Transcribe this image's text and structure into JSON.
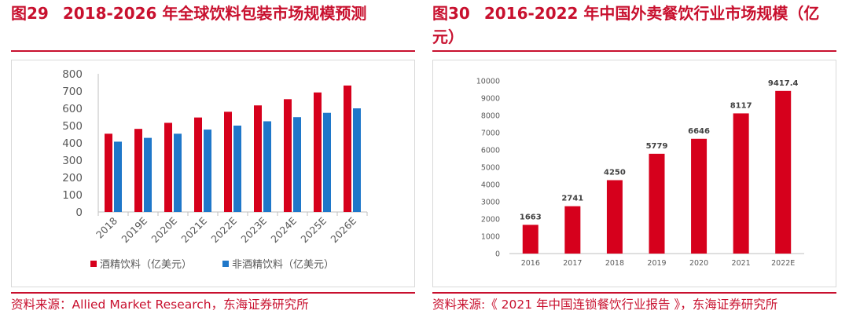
{
  "left": {
    "fig_no": "图29",
    "title": "2018-2026 年全球饮料包装市场规模预测",
    "source": "资料来源：Allied Market Research，东海证券研究所"
  },
  "right": {
    "fig_no": "图30",
    "title": "2016-2022 年中国外卖餐饮行业市场规模（亿元）",
    "source": "资料来源:《 2021 年中国连锁餐饮行业报告 》，东海证券研究所"
  },
  "chart_data": [
    {
      "type": "bar",
      "categories": [
        "2018",
        "2019E",
        "2020E",
        "2021E",
        "2022E",
        "2023E",
        "2024E",
        "2025E",
        "2026E"
      ],
      "series": [
        {
          "name": "酒精饮料（亿美元）",
          "values": [
            453,
            481,
            516,
            547,
            580,
            617,
            653,
            692,
            732
          ],
          "color": "#d6001c"
        },
        {
          "name": "非酒精饮料（亿美元）",
          "values": [
            407,
            429,
            453,
            477,
            500,
            525,
            549,
            574,
            600
          ],
          "color": "#1f77c9"
        }
      ],
      "ylim": [
        0,
        800
      ],
      "yticks": [
        0,
        100,
        200,
        300,
        400,
        500,
        600,
        700,
        800
      ],
      "grid": false,
      "legend": "bottom"
    },
    {
      "type": "bar",
      "categories": [
        "2016",
        "2017",
        "2018",
        "2019",
        "2020",
        "2021",
        "2022E"
      ],
      "values": [
        1663,
        2741,
        4250,
        5779,
        6646,
        8117,
        9417.4
      ],
      "data_labels": [
        "1663",
        "2741",
        "4250",
        "5779",
        "6646",
        "8117",
        "9417.4"
      ],
      "color": "#d6001c",
      "ylim": [
        0,
        10000
      ],
      "yticks": [
        0,
        1000,
        2000,
        3000,
        4000,
        5000,
        6000,
        7000,
        8000,
        9000,
        10000
      ],
      "grid": false,
      "legend": "none"
    }
  ]
}
